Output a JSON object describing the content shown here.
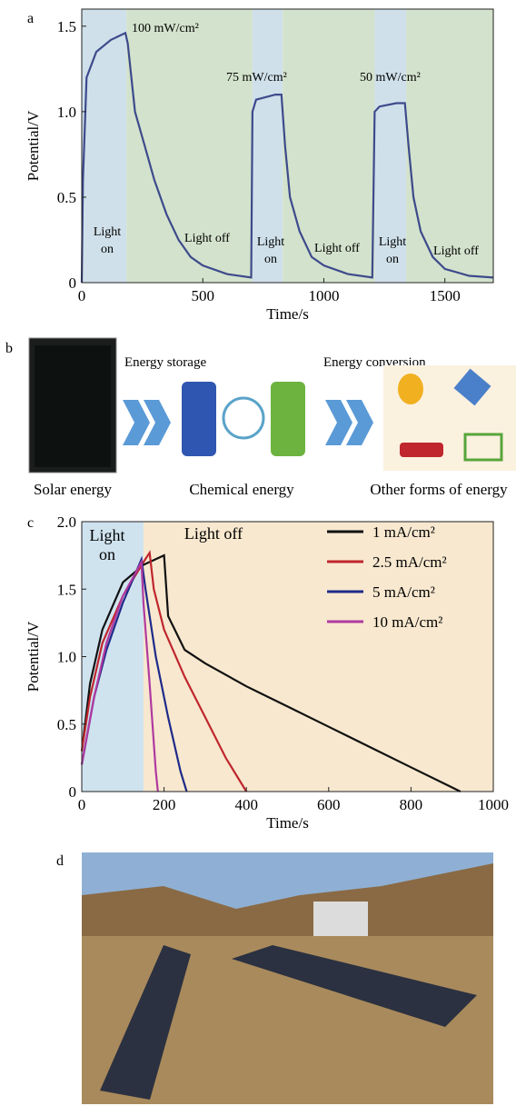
{
  "chart_data": [
    {
      "type": "line",
      "panel_label": "a",
      "x_label": "Time/s",
      "y_label": "Potential/V",
      "xlim": [
        0,
        1700
      ],
      "xticks": [
        0,
        500,
        1000,
        1500
      ],
      "ylim": [
        0,
        1.6
      ],
      "yticks": [
        0,
        0.5,
        {
          "value": 1,
          "label": "1.0"
        },
        1.5
      ],
      "regions": [
        {
          "x": [
            0,
            185
          ],
          "color": "#cfe0ea"
        },
        {
          "x": [
            185,
            705
          ],
          "color": "#d3e2cc"
        },
        {
          "x": [
            705,
            830
          ],
          "color": "#cfe0ea"
        },
        {
          "x": [
            830,
            1210
          ],
          "color": "#d3e2cc"
        },
        {
          "x": [
            1210,
            1340
          ],
          "color": "#cfe0ea"
        },
        {
          "x": [
            1340,
            1700
          ],
          "color": "#d3e2cc"
        }
      ],
      "annotations": [
        "100 mW/cm²",
        "75 mW/cm²",
        "50 mW/cm²",
        "Light",
        "on",
        "Light off",
        "Light",
        "on",
        "Light off",
        "Light",
        "on",
        "Light off"
      ],
      "series": [
        {
          "color": "#3d4a8c",
          "x": [
            0,
            5,
            20,
            60,
            120,
            180,
            190,
            220,
            260,
            300,
            350,
            400,
            450,
            500,
            600,
            700,
            705,
            720,
            800,
            825,
            840,
            860,
            900,
            950,
            1000,
            1100,
            1200,
            1210,
            1230,
            1300,
            1335,
            1350,
            1370,
            1400,
            1450,
            1500,
            1600,
            1700
          ],
          "values": [
            0,
            0.6,
            1.2,
            1.35,
            1.42,
            1.46,
            1.4,
            1.0,
            0.8,
            0.6,
            0.4,
            0.25,
            0.15,
            0.1,
            0.05,
            0.03,
            1.0,
            1.07,
            1.1,
            1.1,
            0.8,
            0.5,
            0.3,
            0.15,
            0.1,
            0.05,
            0.03,
            1.0,
            1.03,
            1.05,
            1.05,
            0.8,
            0.5,
            0.3,
            0.15,
            0.08,
            0.04,
            0.03
          ]
        }
      ]
    },
    {
      "type": "line",
      "panel_label": "c",
      "x_label": "Time/s",
      "y_label": "Potential/V",
      "xlim": [
        0,
        1000
      ],
      "xticks": [
        0,
        200,
        400,
        600,
        800,
        1000
      ],
      "ylim": [
        0,
        2
      ],
      "yticks": [
        0,
        0.5,
        {
          "value": 1,
          "label": "1.0"
        },
        1.5,
        {
          "value": 2,
          "label": "2.0"
        }
      ],
      "regions": [
        {
          "x": [
            0,
            150
          ],
          "color": "#cfe3ef"
        },
        {
          "x": [
            150,
            1000
          ],
          "color": "#f7e8cf"
        }
      ],
      "annotations": [
        "Light",
        "on",
        "Light off"
      ],
      "series": [
        {
          "name": "1 mA/cm²",
          "color": "#111111",
          "x": [
            0,
            20,
            50,
            100,
            150,
            200,
            210,
            250,
            300,
            400,
            500,
            600,
            700,
            800,
            900,
            920
          ],
          "values": [
            0.3,
            0.8,
            1.2,
            1.55,
            1.68,
            1.75,
            1.3,
            1.05,
            0.95,
            0.78,
            0.63,
            0.48,
            0.33,
            0.18,
            0.03,
            0
          ]
        },
        {
          "name": "2.5 mA/cm²",
          "color": "#c0262d",
          "x": [
            0,
            20,
            50,
            100,
            150,
            165,
            175,
            200,
            250,
            300,
            350,
            400
          ],
          "values": [
            0.3,
            0.7,
            1.1,
            1.45,
            1.7,
            1.77,
            1.5,
            1.2,
            0.85,
            0.55,
            0.25,
            0
          ]
        },
        {
          "name": "5 mA/cm²",
          "color": "#1f2a8a",
          "x": [
            0,
            30,
            60,
            100,
            145,
            155,
            180,
            210,
            240,
            255
          ],
          "values": [
            0.2,
            0.7,
            1.05,
            1.4,
            1.72,
            1.5,
            1.0,
            0.55,
            0.15,
            0
          ]
        },
        {
          "name": "10 mA/cm²",
          "color": "#b03aa0",
          "x": [
            0,
            30,
            60,
            100,
            145,
            150,
            165,
            180,
            185
          ],
          "values": [
            0.2,
            0.7,
            1.1,
            1.45,
            1.7,
            1.4,
            0.8,
            0.15,
            0
          ]
        }
      ]
    }
  ],
  "panel_b": {
    "label": "b",
    "energy_storage": "Energy storage",
    "energy_conversion": "Energy conversion",
    "solar": "Solar energy",
    "chemical": "Chemical energy",
    "other": "Other forms of energy"
  },
  "panel_d": {
    "label": "d"
  }
}
